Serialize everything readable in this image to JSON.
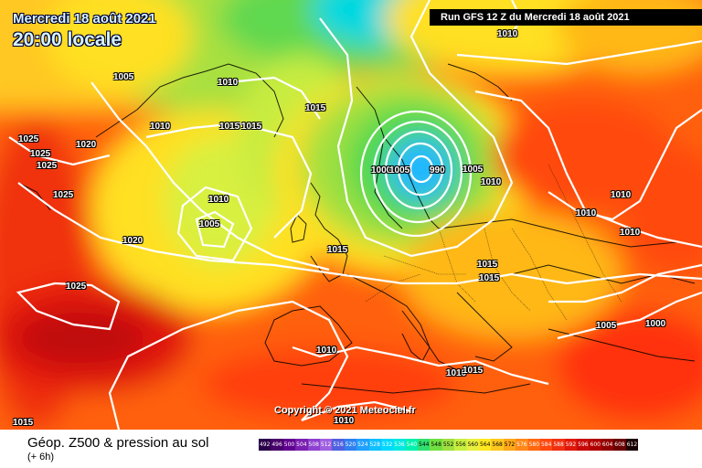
{
  "header": {
    "date": "Mercredi 18 août 2021",
    "time": "20:00 locale",
    "run": "Run GFS 12 Z du Mercredi 18 août 2021"
  },
  "map": {
    "copyright": "Copyright © 2021 Meteociel.fr",
    "isobar_labels": [
      "1010",
      "1005",
      "1010",
      "1010",
      "1015",
      "1015",
      "1015",
      "1025",
      "1025",
      "1020",
      "1025",
      "1025",
      "1010",
      "1005",
      "1020",
      "1025",
      "1015",
      "1015",
      "1000",
      "1005",
      "990",
      "1005",
      "1010",
      "1010",
      "1010",
      "1010",
      "1015",
      "1015",
      "1005",
      "1000",
      "1010",
      "1010",
      "1010",
      "1015"
    ]
  },
  "footer": {
    "title": "Géop. Z500 & pression au sol",
    "subtitle": "(+ 6h)"
  },
  "legend": {
    "values": [
      "492",
      "496",
      "500",
      "504",
      "508",
      "512",
      "516",
      "520",
      "524",
      "528",
      "532",
      "536",
      "540",
      "544",
      "548",
      "552",
      "556",
      "560",
      "564",
      "568",
      "572",
      "576",
      "580",
      "584",
      "588",
      "592",
      "596",
      "600",
      "604",
      "608",
      "612"
    ],
    "colors": [
      "#2b004a",
      "#48006a",
      "#600090",
      "#7a20b0",
      "#8e40d0",
      "#9e60e0",
      "#5060e0",
      "#3080f0",
      "#20a0ff",
      "#10c0ff",
      "#00d8ff",
      "#00e8e0",
      "#00f0b0",
      "#30e070",
      "#70e040",
      "#a0e040",
      "#c8f040",
      "#e8f040",
      "#ffe820",
      "#ffc820",
      "#ffa818",
      "#ff8818",
      "#ff6810",
      "#ff4810",
      "#f03010",
      "#e01808",
      "#c80808",
      "#b00000",
      "#900000",
      "#6a0000",
      "#1a0000"
    ]
  }
}
